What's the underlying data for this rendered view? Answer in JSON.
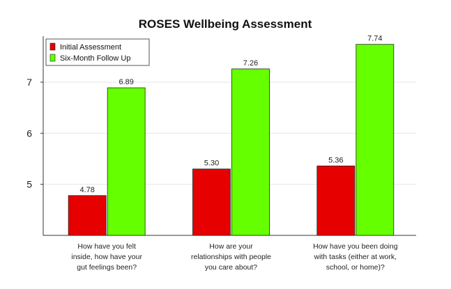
{
  "chart_data": {
    "type": "bar",
    "title": "ROSES Wellbeing Assessment",
    "xlabel": "",
    "ylabel": "",
    "ylim": [
      4.0,
      7.9
    ],
    "yticks": [
      5,
      6,
      7
    ],
    "grid": true,
    "legend_position": "top-left",
    "categories": [
      [
        "How have you felt",
        "inside, how have your",
        "gut feelings been?"
      ],
      [
        "How are your",
        "relationships with people",
        "you care about?"
      ],
      [
        "How have you been doing",
        "with tasks (either at work,",
        "school, or home)?"
      ]
    ],
    "series": [
      {
        "name": "Initial Assessment",
        "color": "#e60000",
        "values": [
          4.78,
          5.3,
          5.36
        ],
        "labels": [
          "4.78",
          "5.30",
          "5.36"
        ]
      },
      {
        "name": "Six-Month Follow Up",
        "color": "#66ff00",
        "values": [
          6.89,
          7.26,
          7.74
        ],
        "labels": [
          "6.89",
          "7.26",
          "7.74"
        ]
      }
    ]
  }
}
